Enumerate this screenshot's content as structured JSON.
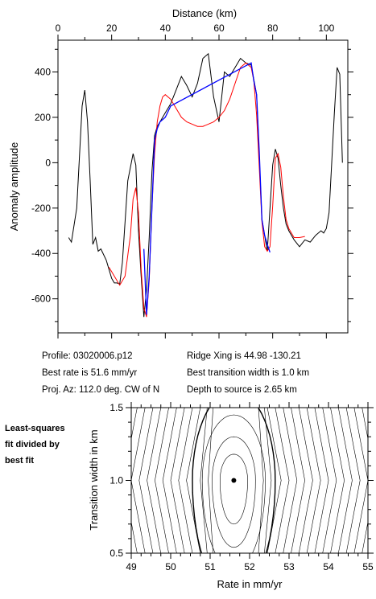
{
  "chart_data": [
    {
      "type": "line",
      "xlabel": "Distance (km)",
      "ylabel": "Anomaly amplitude",
      "xlim": [
        0,
        108
      ],
      "ylim": [
        -750,
        540
      ],
      "xticks": [
        0,
        20,
        40,
        60,
        80,
        100
      ],
      "yticks": [
        -600,
        -400,
        -200,
        0,
        200,
        400
      ],
      "xaxis_position": "top",
      "grid": false,
      "series": [
        {
          "color": "#000000",
          "x": [
            4,
            5,
            7,
            9,
            10,
            11,
            12,
            13,
            14,
            15,
            16,
            18,
            20,
            21,
            22,
            23,
            24,
            26,
            28,
            29,
            30,
            31,
            32,
            33,
            34,
            35,
            36,
            37,
            38,
            40,
            42,
            44,
            46,
            48,
            50,
            52,
            54,
            56,
            58,
            60,
            62,
            64,
            66,
            68,
            70,
            72,
            74,
            76,
            78,
            80,
            81,
            82,
            83,
            84,
            85,
            86,
            88,
            90,
            92,
            94,
            96,
            98,
            99,
            100,
            101,
            102,
            103,
            104,
            105,
            106
          ],
          "y": [
            -330,
            -350,
            -200,
            250,
            320,
            180,
            -80,
            -360,
            -330,
            -390,
            -380,
            -430,
            -510,
            -530,
            -530,
            -535,
            -440,
            -80,
            40,
            -10,
            -300,
            -500,
            -680,
            -560,
            -330,
            -40,
            120,
            160,
            180,
            220,
            260,
            320,
            380,
            340,
            290,
            350,
            460,
            480,
            290,
            180,
            400,
            380,
            420,
            460,
            440,
            430,
            300,
            -250,
            -390,
            -10,
            60,
            20,
            -100,
            -200,
            -270,
            -300,
            -340,
            -370,
            -340,
            -350,
            -320,
            -300,
            -310,
            -290,
            -220,
            0,
            220,
            420,
            390,
            0
          ]
        },
        {
          "color": "#ff0000",
          "x": [
            19,
            21,
            23,
            25,
            27,
            28,
            29,
            30,
            31,
            32,
            33,
            34,
            35,
            36,
            37,
            38,
            39,
            40,
            42,
            44,
            46,
            48,
            50,
            52,
            54,
            56,
            58,
            60,
            62,
            64,
            66,
            68,
            70,
            72,
            73,
            74,
            75,
            76,
            77,
            78,
            79,
            80,
            81,
            82,
            83,
            84,
            85,
            86,
            88,
            90,
            92
          ],
          "y": [
            -460,
            -500,
            -540,
            -500,
            -320,
            -160,
            -110,
            -220,
            -470,
            -640,
            -680,
            -520,
            -200,
            40,
            180,
            250,
            290,
            300,
            280,
            240,
            200,
            180,
            170,
            160,
            160,
            170,
            180,
            200,
            230,
            280,
            350,
            420,
            440,
            420,
            360,
            210,
            -20,
            -260,
            -370,
            -390,
            -370,
            -190,
            20,
            40,
            -20,
            -150,
            -250,
            -290,
            -330,
            -330,
            -325
          ]
        },
        {
          "color": "#0000ff",
          "x": [
            32,
            33,
            34,
            35,
            36,
            37,
            38,
            40,
            42,
            72,
            73,
            74,
            75,
            76,
            77,
            78,
            79
          ],
          "y": [
            -380,
            -670,
            -500,
            -200,
            100,
            150,
            180,
            200,
            250,
            440,
            360,
            300,
            50,
            -250,
            -320,
            -360,
            -395
          ]
        }
      ]
    },
    {
      "type": "heatmap",
      "xlabel": "Rate in mm/yr",
      "ylabel": "Transition width in km",
      "xlim": [
        49,
        55
      ],
      "ylim": [
        0.5,
        1.5
      ],
      "xticks": [
        49,
        50,
        51,
        52,
        53,
        54,
        55
      ],
      "yticks": [
        0.5,
        1.0,
        1.5
      ],
      "best_fit_point": [
        51.6,
        1.0
      ],
      "color": "#000000"
    }
  ],
  "info": {
    "profile": "Profile: 03020006.p12",
    "best_rate": "Best rate is 51.6 mm/yr",
    "proj_az": "Proj. Az: 112.0 deg. CW of N",
    "ridge_xing": "Ridge Xing is 44.98 -130.21",
    "best_transition": "Best transition width is 1.0 km",
    "depth": "Depth to source is   2.65 km"
  },
  "side_note": [
    "Least-squares",
    "fit divided by",
    "best fit"
  ]
}
